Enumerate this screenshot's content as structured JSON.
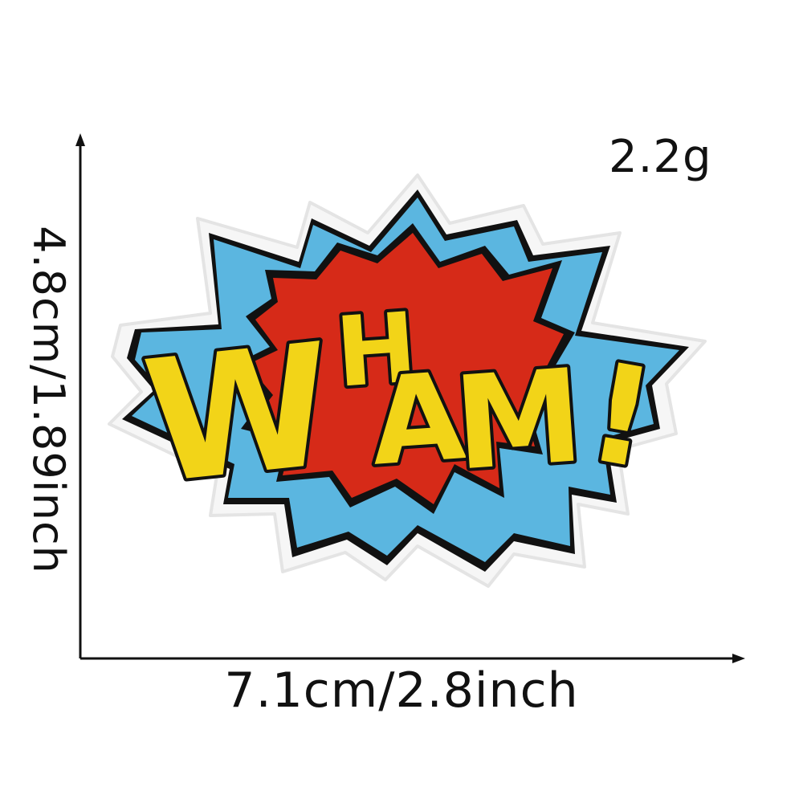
{
  "product": {
    "patch_text": "WHAM!",
    "weight_label": "2.2g"
  },
  "dimensions": {
    "width_label": "7.1cm/2.8inch",
    "height_label": "4.8cm/1.89inch"
  },
  "colors": {
    "background": "#ffffff",
    "border": "#f3f3f3",
    "outer_burst": "#5bb6e0",
    "inner_burst": "#d62a18",
    "letters": "#f2d418",
    "outline": "#111111"
  }
}
